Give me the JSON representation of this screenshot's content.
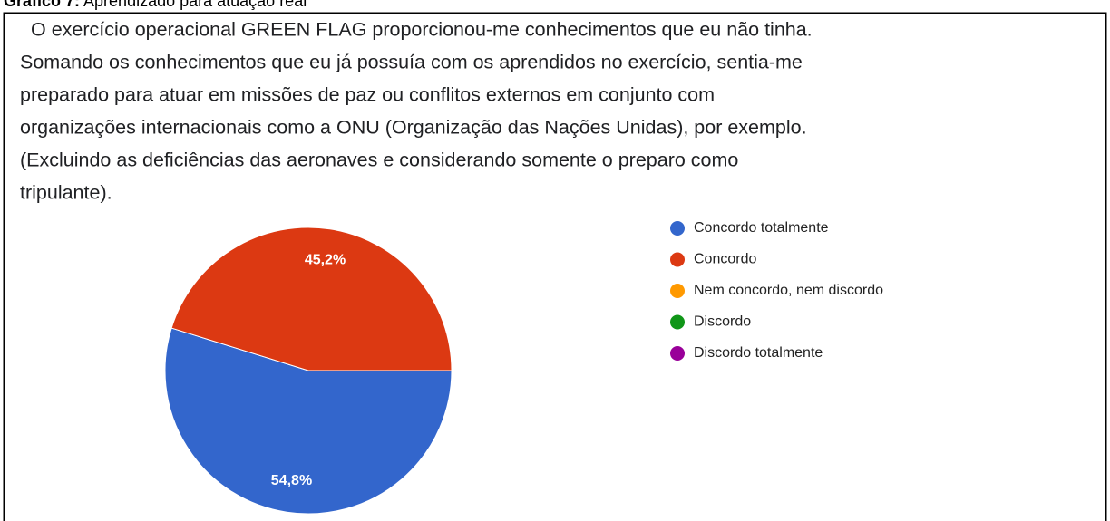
{
  "caption_label": "Gráfico 7:",
  "caption": "Aprendizado para atuação real",
  "chart_data": {
    "type": "pie",
    "title_lines": [
      "O exercício operacional GREEN FLAG proporcionou-me conhecimentos que eu não tinha.",
      "Somando os conhecimentos que eu já possuía com os aprendidos no exercício, sentia-me",
      "preparado para atuar em missões de paz ou conflitos externos em conjunto com",
      "organizações internacionais como a ONU (Organização das Nações Unidas), por exemplo.",
      "(Excluindo as deficiências das aeronaves e considerando somente o preparo como",
      "tripulante)."
    ],
    "categories": [
      "Concordo totalmente",
      "Concordo",
      "Nem concordo, nem discordo",
      "Discordo",
      "Discordo totalmente"
    ],
    "values": [
      54.8,
      45.2,
      0,
      0,
      0
    ],
    "value_labels": [
      "54,8%",
      "45,2%",
      null,
      null,
      null
    ],
    "colors": [
      "#3366cc",
      "#dc3912",
      "#ff9900",
      "#109618",
      "#990099"
    ],
    "legend": "right"
  }
}
